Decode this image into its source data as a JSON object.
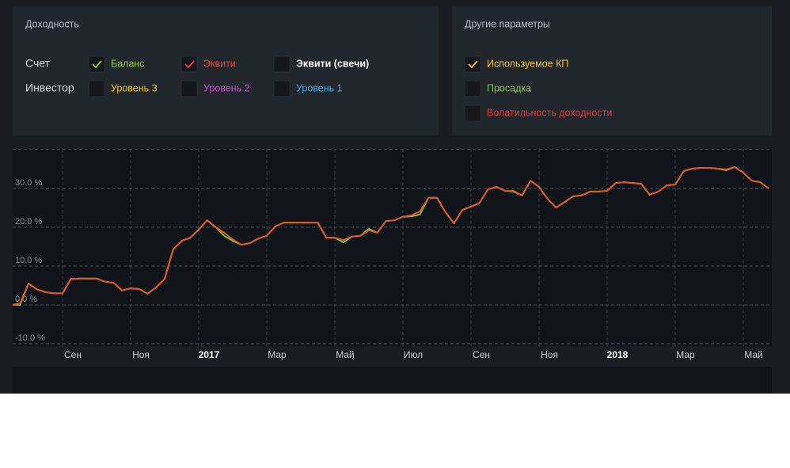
{
  "panels": [
    {
      "title": "Доходность",
      "rows": [
        {
          "label": "Счет",
          "options": [
            {
              "label": "Баланс",
              "checked": true,
              "color": "#8ccf2e"
            },
            {
              "label": "Эквити",
              "checked": true,
              "color": "#e8442f"
            },
            {
              "label": "Эквити (свечи)",
              "checked": false,
              "color": "#ffffff"
            }
          ]
        },
        {
          "label": "Инвестор",
          "options": [
            {
              "label": "Уровень 3",
              "checked": false,
              "color": "#f2c526"
            },
            {
              "label": "Уровень 2",
              "checked": false,
              "color": "#d447d6"
            },
            {
              "label": "Уровень 1",
              "checked": false,
              "color": "#3eaee0"
            }
          ]
        }
      ]
    },
    {
      "title": "Другие параметры",
      "rows": [
        {
          "options": [
            {
              "label": "Используемое КП",
              "checked": true,
              "color": "#f2c526"
            }
          ]
        },
        {
          "options": [
            {
              "label": "Просадка",
              "checked": false,
              "color": "#7fc63c"
            }
          ]
        },
        {
          "options": [
            {
              "label": "Волатильность доходности",
              "checked": false,
              "color": "#e03a3a"
            }
          ]
        }
      ]
    }
  ],
  "chart_data": {
    "type": "line",
    "categories": [
      null,
      null,
      null,
      null,
      null,
      null,
      "Сен",
      null,
      null,
      null,
      null,
      null,
      null,
      null,
      "Ноя",
      null,
      null,
      null,
      null,
      null,
      null,
      null,
      "2017",
      null,
      null,
      null,
      null,
      null,
      null,
      null,
      "Мар",
      null,
      null,
      null,
      null,
      null,
      null,
      null,
      "Май",
      null,
      null,
      null,
      null,
      null,
      null,
      null,
      "Июл",
      null,
      null,
      null,
      null,
      null,
      null,
      null,
      "Сен",
      null,
      null,
      null,
      null,
      null,
      null,
      null,
      "Ноя",
      null,
      null,
      null,
      null,
      null,
      null,
      null,
      "2018",
      null,
      null,
      null,
      null,
      null,
      null,
      null,
      "Мар",
      null,
      null,
      null,
      null,
      null,
      null,
      null,
      "Май",
      null,
      null,
      null
    ],
    "series": [
      {
        "color": "#7cc22a",
        "values": [
          0,
          0,
          5.5,
          4,
          3.3,
          3,
          3,
          6.7,
          6.8,
          6.8,
          6.8,
          6,
          5.7,
          3.7,
          4.3,
          4.1,
          2.9,
          4.5,
          6.7,
          14.3,
          16.5,
          17.3,
          19.4,
          21.8,
          20,
          17.8,
          16.5,
          15.5,
          15.9,
          17.1,
          17.8,
          20.2,
          21.2,
          21.2,
          21.2,
          21.2,
          21.2,
          17.3,
          17.3,
          16.1,
          17.6,
          17.8,
          19.6,
          18.6,
          21.6,
          21.8,
          22.7,
          22.8,
          23.3,
          27.6,
          27.6,
          23.9,
          21,
          24.5,
          25.3,
          26.3,
          29.8,
          30.4,
          29.4,
          29.2,
          28.2,
          32,
          30.4,
          27.3,
          25.1,
          26.5,
          28,
          28.2,
          29.2,
          29.2,
          29.4,
          31.4,
          31.6,
          31.4,
          31.2,
          28.4,
          29.2,
          30.8,
          31,
          34.5,
          35.1,
          35.3,
          35.3,
          35.1,
          34.7,
          35.5,
          34.1,
          32,
          31.6,
          30
        ]
      },
      {
        "color": "#e4562c",
        "values": [
          0,
          0.4,
          5.5,
          4,
          3.3,
          3,
          3,
          6.7,
          6.8,
          6.8,
          6.8,
          6,
          5.7,
          3.7,
          4.3,
          4.1,
          2.9,
          4.5,
          6.7,
          14.3,
          16.5,
          17.3,
          19.4,
          21.8,
          20,
          18.6,
          16.9,
          15.5,
          15.9,
          17.1,
          17.8,
          20.2,
          21.2,
          21.2,
          21.2,
          21.2,
          21.2,
          17.3,
          17.3,
          16.7,
          17.6,
          17.8,
          19.2,
          18.6,
          21.6,
          21.8,
          22.7,
          23.1,
          24.1,
          27.6,
          27.6,
          23.9,
          21,
          24.5,
          25.3,
          26.3,
          29.8,
          30.4,
          29.4,
          29.4,
          28.2,
          32,
          30.4,
          27.3,
          25.1,
          26.5,
          28,
          28.2,
          29.2,
          29.2,
          29.4,
          31.4,
          31.6,
          31.4,
          31.2,
          28.4,
          29.2,
          30.8,
          31,
          34.5,
          35.1,
          35.3,
          35.3,
          35.1,
          34.9,
          35.5,
          34.1,
          32,
          31.6,
          30
        ]
      }
    ],
    "ylim": [
      -10.6,
      40.2
    ],
    "yticks": [
      {
        "value": -10,
        "label": "-10.0 %"
      },
      {
        "value": 0,
        "label": "0.0 %"
      },
      {
        "value": 10,
        "label": "10.0 %"
      },
      {
        "value": 20,
        "label": "20.0 %"
      },
      {
        "value": 30,
        "label": "30.0 %"
      }
    ],
    "grid": true
  }
}
